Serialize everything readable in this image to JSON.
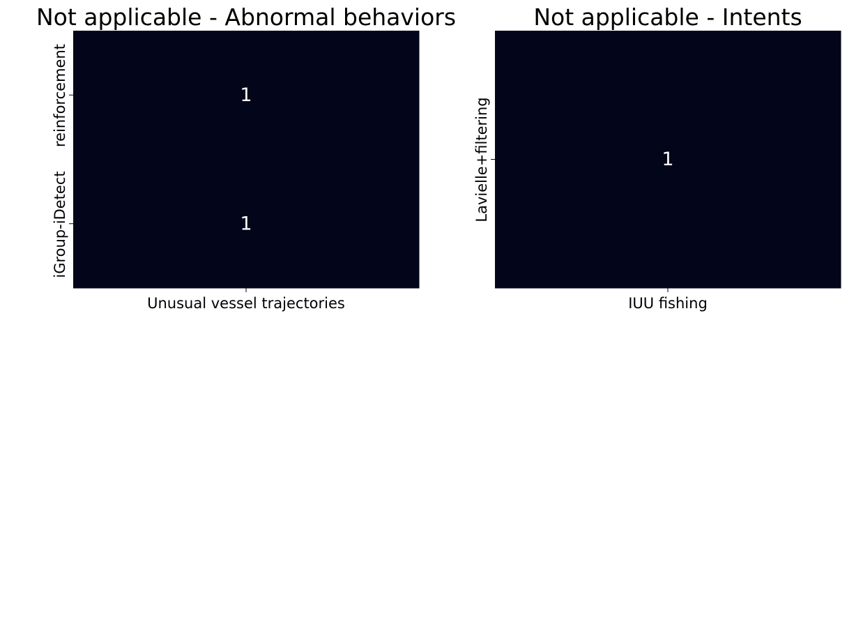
{
  "chart_data": [
    {
      "type": "heatmap",
      "title": "Not applicable - Abnormal behaviors",
      "x_categories": [
        "Unusual vessel trajectories"
      ],
      "y_categories": [
        "reinforcement",
        "iGroup-iDetect"
      ],
      "values": [
        [
          1
        ],
        [
          1
        ]
      ],
      "annotations": [
        [
          "1"
        ],
        [
          "1"
        ]
      ],
      "xlabel": "",
      "ylabel": "",
      "colorbar": false,
      "colors": {
        "cell": "#03051a",
        "annotation": "#ffffff",
        "axis": "#000000"
      }
    },
    {
      "type": "heatmap",
      "title": "Not applicable - Intents",
      "x_categories": [
        "IUU fishing"
      ],
      "y_categories": [
        "Lavielle+filtering"
      ],
      "values": [
        [
          1
        ]
      ],
      "annotations": [
        [
          "1"
        ]
      ],
      "xlabel": "",
      "ylabel": "",
      "colorbar": false,
      "colors": {
        "cell": "#03051a",
        "annotation": "#ffffff",
        "axis": "#000000"
      }
    }
  ]
}
